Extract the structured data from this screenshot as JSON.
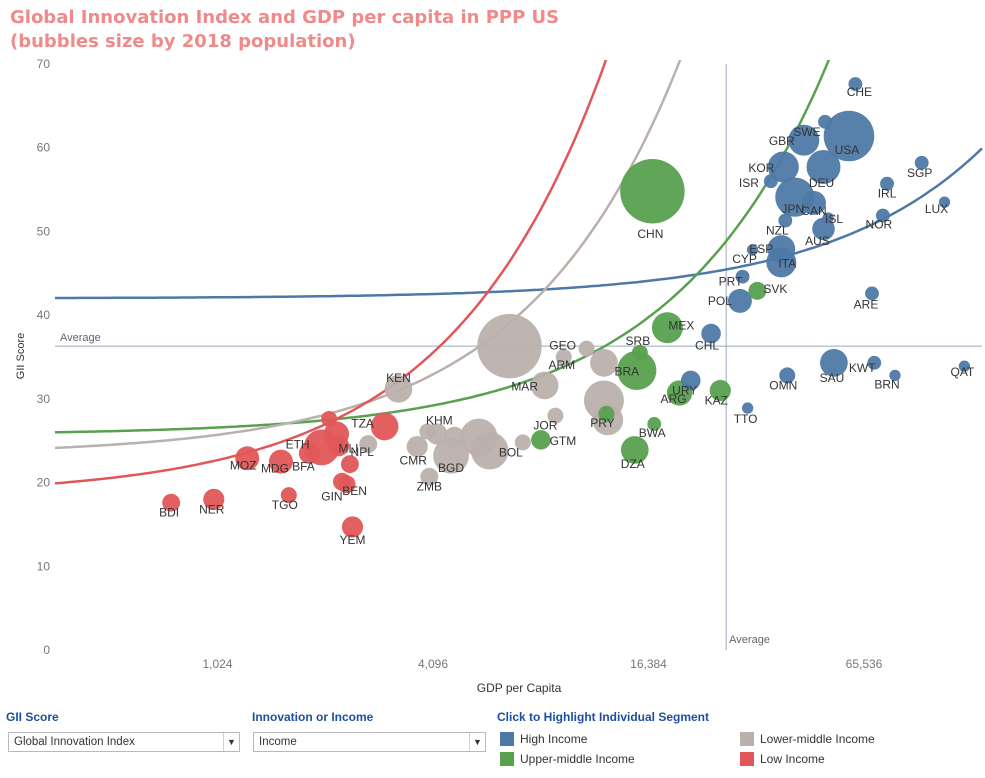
{
  "title": {
    "line1": "Global Innovation Index and GDP per capita in PPP US",
    "line2": "(bubbles size by 2018 population)"
  },
  "colors": {
    "high": "#4e79a7",
    "upper": "#59a14f",
    "lower": "#bab0ac",
    "low": "#e15759",
    "title": "#f08a8a",
    "control_title": "#1e4f9c"
  },
  "controls": {
    "gii_title": "GII Score",
    "gii_value": "Global Innovation Index",
    "innov_title": "Innovation or Income",
    "innov_value": "Income",
    "highlight_title": "Click to Highlight Individual Segment"
  },
  "legend": [
    {
      "key": "high",
      "label": "High Income"
    },
    {
      "key": "lower",
      "label": "Lower-middle Income"
    },
    {
      "key": "upper",
      "label": "Upper-middle Income"
    },
    {
      "key": "low",
      "label": "Low Income"
    }
  ],
  "chart_data": {
    "type": "scatter",
    "xlabel": "GDP per Capita",
    "ylabel": "GII Score",
    "x_scale": "log2",
    "xlim": [
      360,
      140000
    ],
    "ylim": [
      0,
      70
    ],
    "x_ticks": [
      {
        "v": 1024,
        "label": "1,024"
      },
      {
        "v": 4096,
        "label": "4,096"
      },
      {
        "v": 16384,
        "label": "16,384"
      },
      {
        "v": 65536,
        "label": "65,536"
      }
    ],
    "y_ticks": [
      0,
      10,
      20,
      30,
      40,
      50,
      60,
      70
    ],
    "ref_lines": {
      "x": 27000,
      "y": 36.3,
      "x_label": "Average",
      "y_label": "Average"
    },
    "trend_lines": [
      {
        "group": "high",
        "a": 42,
        "b": 0.000128
      },
      {
        "group": "upper",
        "a": 25.7,
        "b": 0.000857
      },
      {
        "group": "lower",
        "a": 23.3,
        "b": 0.00235
      },
      {
        "group": "low",
        "a": 18.4,
        "b": 0.00418
      }
    ],
    "points": [
      {
        "label": "CHE",
        "group": "high",
        "x": 62000,
        "y": 67.6,
        "size": 3
      },
      {
        "label": "SWE",
        "group": "high",
        "x": 51000,
        "y": 63.1,
        "size": 3
      },
      {
        "label": "GBR",
        "group": "high",
        "x": 44500,
        "y": 60.9,
        "size": 15
      },
      {
        "label": "USA",
        "group": "high",
        "x": 59500,
        "y": 61.4,
        "size": 40
      },
      {
        "label": "KOR",
        "group": "high",
        "x": 39000,
        "y": 57.7,
        "size": 15
      },
      {
        "label": "DEU",
        "group": "high",
        "x": 50500,
        "y": 57.7,
        "size": 18
      },
      {
        "label": "ISR",
        "group": "high",
        "x": 36000,
        "y": 56.0,
        "size": 3
      },
      {
        "label": "SGP",
        "group": "high",
        "x": 95000,
        "y": 58.2,
        "size": 3
      },
      {
        "label": "JPN",
        "group": "high",
        "x": 42000,
        "y": 54.1,
        "size": 24
      },
      {
        "label": "CAN",
        "group": "high",
        "x": 47500,
        "y": 53.4,
        "size": 9
      },
      {
        "label": "IRL",
        "group": "high",
        "x": 76000,
        "y": 55.7,
        "size": 3
      },
      {
        "label": "ISL",
        "group": "high",
        "x": 52000,
        "y": 51.6,
        "size": 2
      },
      {
        "label": "NZL",
        "group": "high",
        "x": 39500,
        "y": 51.3,
        "size": 3
      },
      {
        "label": "NOR",
        "group": "high",
        "x": 74000,
        "y": 51.9,
        "size": 3
      },
      {
        "label": "LUX",
        "group": "high",
        "x": 110000,
        "y": 53.5,
        "size": 2
      },
      {
        "label": "ESP",
        "group": "high",
        "x": 38500,
        "y": 47.9,
        "size": 12
      },
      {
        "label": "AUS",
        "group": "high",
        "x": 50500,
        "y": 50.3,
        "size": 8
      },
      {
        "label": "ITA",
        "group": "high",
        "x": 38500,
        "y": 46.3,
        "size": 14
      },
      {
        "label": "CYP",
        "group": "high",
        "x": 32000,
        "y": 47.8,
        "size": 2
      },
      {
        "label": "PRT",
        "group": "high",
        "x": 30000,
        "y": 44.6,
        "size": 3
      },
      {
        "label": "POL",
        "group": "high",
        "x": 29500,
        "y": 41.7,
        "size": 9
      },
      {
        "label": "ARE",
        "group": "high",
        "x": 69000,
        "y": 42.6,
        "size": 3
      },
      {
        "label": "CHL",
        "group": "high",
        "x": 24500,
        "y": 37.8,
        "size": 6
      },
      {
        "label": "URY",
        "group": "high",
        "x": 21500,
        "y": 32.2,
        "size": 6
      },
      {
        "label": "KWT",
        "group": "high",
        "x": 70000,
        "y": 34.3,
        "size": 3
      },
      {
        "label": "QAT",
        "group": "high",
        "x": 125000,
        "y": 33.9,
        "size": 2
      },
      {
        "label": "BRN",
        "group": "high",
        "x": 80000,
        "y": 32.8,
        "size": 2
      },
      {
        "label": "SAU",
        "group": "high",
        "x": 54000,
        "y": 34.3,
        "size": 12
      },
      {
        "label": "OMN",
        "group": "high",
        "x": 40000,
        "y": 32.8,
        "size": 4
      },
      {
        "label": "TTO",
        "group": "high",
        "x": 31000,
        "y": 28.9,
        "size": 2
      },
      {
        "label": "CHN",
        "group": "upper",
        "x": 16800,
        "y": 54.8,
        "size": 65
      },
      {
        "label": "MEX",
        "group": "upper",
        "x": 18500,
        "y": 38.5,
        "size": 15
      },
      {
        "label": "SVK",
        "group": "upper",
        "x": 33000,
        "y": 42.9,
        "size": 5
      },
      {
        "label": "BRA",
        "group": "upper",
        "x": 15200,
        "y": 33.4,
        "size": 24
      },
      {
        "label": "ARG",
        "group": "upper",
        "x": 20000,
        "y": 30.7,
        "size": 10
      },
      {
        "label": "KAZ",
        "group": "upper",
        "x": 26000,
        "y": 31.0,
        "size": 7
      },
      {
        "label": "PRY",
        "group": "upper",
        "x": 12500,
        "y": 28.2,
        "size": 4
      },
      {
        "label": "BWA",
        "group": "upper",
        "x": 17000,
        "y": 27.0,
        "size": 3
      },
      {
        "label": "DZA",
        "group": "upper",
        "x": 15000,
        "y": 23.9,
        "size": 12
      },
      {
        "label": "GTM",
        "group": "upper",
        "x": 8200,
        "y": 25.1,
        "size": 6
      },
      {
        "label": "SRB",
        "group": "upper",
        "x": 15500,
        "y": 35.5,
        "size": 4
      },
      {
        "label": "lower-1",
        "group": "lower",
        "x": 6700,
        "y": 36.3,
        "size": 65
      },
      {
        "label": "MAR",
        "group": "lower",
        "x": 8400,
        "y": 31.6,
        "size": 12
      },
      {
        "label": "ARM",
        "group": "lower",
        "x": 9500,
        "y": 35.0,
        "size": 4
      },
      {
        "label": "GEO",
        "group": "lower",
        "x": 11000,
        "y": 36.0,
        "size": 4
      },
      {
        "label": "lower-2",
        "group": "lower",
        "x": 12300,
        "y": 34.3,
        "size": 12
      },
      {
        "label": "lower-3",
        "group": "lower",
        "x": 12300,
        "y": 29.8,
        "size": 25
      },
      {
        "label": "lower-4",
        "group": "lower",
        "x": 12600,
        "y": 27.5,
        "size": 15
      },
      {
        "label": "JOR",
        "group": "lower",
        "x": 9000,
        "y": 28.0,
        "size": 4
      },
      {
        "label": "BOL",
        "group": "lower",
        "x": 7300,
        "y": 24.8,
        "size": 4
      },
      {
        "label": "KEN",
        "group": "lower",
        "x": 3280,
        "y": 31.2,
        "size": 12
      },
      {
        "label": "KHM",
        "group": "lower",
        "x": 3950,
        "y": 26.1,
        "size": 4
      },
      {
        "label": "NPL",
        "group": "lower",
        "x": 2700,
        "y": 24.6,
        "size": 5
      },
      {
        "label": "CMR",
        "group": "lower",
        "x": 3700,
        "y": 24.3,
        "size": 7
      },
      {
        "label": "BGD",
        "group": "lower",
        "x": 4600,
        "y": 23.2,
        "size": 20
      },
      {
        "label": "ZMB",
        "group": "lower",
        "x": 4000,
        "y": 20.7,
        "size": 5
      },
      {
        "label": "lower-5",
        "group": "lower",
        "x": 5500,
        "y": 25.4,
        "size": 22
      },
      {
        "label": "lower-6",
        "group": "lower",
        "x": 5900,
        "y": 23.8,
        "size": 22
      },
      {
        "label": "lower-7",
        "group": "lower",
        "x": 4700,
        "y": 25.4,
        "size": 7
      },
      {
        "label": "lower-8",
        "group": "lower",
        "x": 4200,
        "y": 25.8,
        "size": 7
      },
      {
        "label": "BDI",
        "group": "low",
        "x": 760,
        "y": 17.6,
        "size": 5
      },
      {
        "label": "NER",
        "group": "low",
        "x": 1000,
        "y": 18.0,
        "size": 7
      },
      {
        "label": "MOZ",
        "group": "low",
        "x": 1240,
        "y": 22.9,
        "size": 9
      },
      {
        "label": "MDG",
        "group": "low",
        "x": 1540,
        "y": 22.5,
        "size": 9
      },
      {
        "label": "ETH",
        "group": "low",
        "x": 2000,
        "y": 24.2,
        "size": 20
      },
      {
        "label": "BFA",
        "group": "low",
        "x": 1850,
        "y": 23.5,
        "size": 7
      },
      {
        "label": "TGO",
        "group": "low",
        "x": 1620,
        "y": 18.5,
        "size": 4
      },
      {
        "label": "GIN",
        "group": "low",
        "x": 2280,
        "y": 20.1,
        "size": 5
      },
      {
        "label": "BEN",
        "group": "low",
        "x": 2350,
        "y": 19.8,
        "size": 5
      },
      {
        "label": "MLI",
        "group": "low",
        "x": 2230,
        "y": 24.4,
        "size": 7
      },
      {
        "label": "TZA",
        "group": "low",
        "x": 3000,
        "y": 26.7,
        "size": 12
      },
      {
        "label": "YEM",
        "group": "low",
        "x": 2440,
        "y": 14.7,
        "size": 7
      },
      {
        "label": "low-1",
        "group": "low",
        "x": 2100,
        "y": 27.6,
        "size": 4
      },
      {
        "label": "low-2",
        "group": "low",
        "x": 2200,
        "y": 25.8,
        "size": 10
      },
      {
        "label": "low-3",
        "group": "low",
        "x": 2400,
        "y": 22.2,
        "size": 5
      }
    ]
  }
}
